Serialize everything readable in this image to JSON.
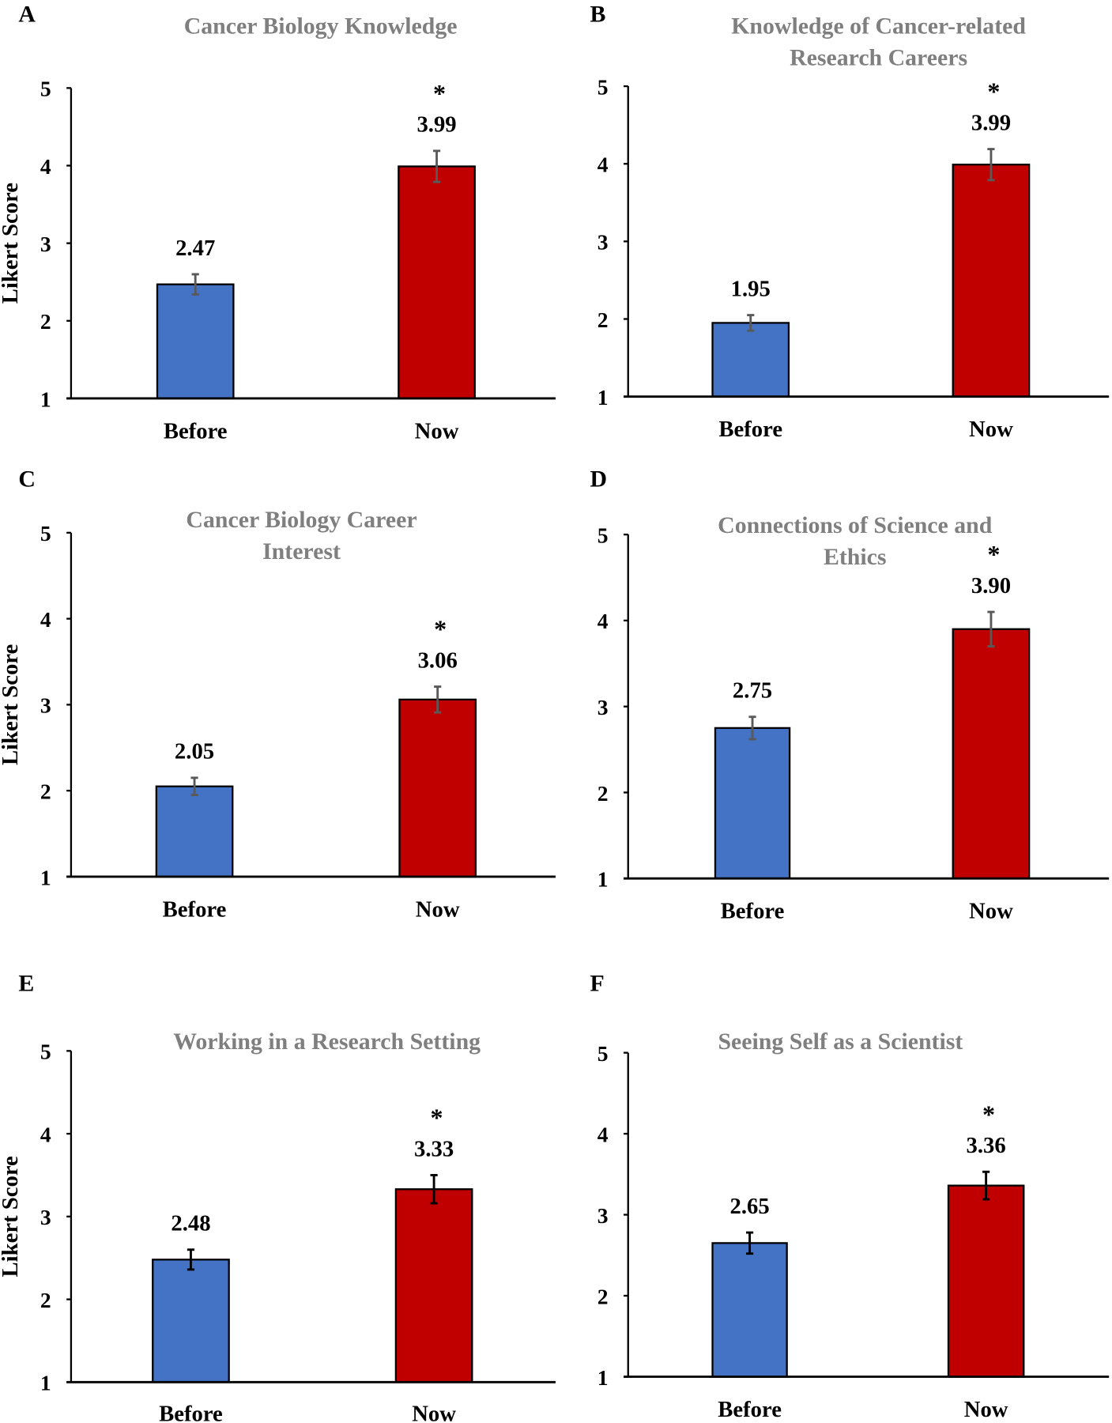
{
  "colors": {
    "before": "#4472c4",
    "now": "#c00000",
    "title": "#7f7f7f"
  },
  "chart_data": [
    {
      "type": "bar",
      "panel": "A",
      "title": [
        "Cancer Biology Knowledge"
      ],
      "ylabel": "Likert Score",
      "ylim": [
        1,
        5
      ],
      "yticks": [
        "1",
        "2",
        "3",
        "4",
        "5"
      ],
      "categories": [
        "Before",
        "Now"
      ],
      "values": [
        2.47,
        3.99
      ],
      "labels": [
        "2.47",
        "3.99"
      ],
      "errors": [
        0.13,
        0.2
      ],
      "significant": [
        false,
        true
      ],
      "sig_marker": "*",
      "error_color": "#595959"
    },
    {
      "type": "bar",
      "panel": "B",
      "title": [
        "Knowledge of Cancer-related",
        "Research Careers"
      ],
      "ylabel": "",
      "ylim": [
        1,
        5
      ],
      "yticks": [
        "1",
        "2",
        "3",
        "4",
        "5"
      ],
      "categories": [
        "Before",
        "Now"
      ],
      "values": [
        1.95,
        3.99
      ],
      "labels": [
        "1.95",
        "3.99"
      ],
      "errors": [
        0.1,
        0.2
      ],
      "significant": [
        false,
        true
      ],
      "sig_marker": "*",
      "error_color": "#595959"
    },
    {
      "type": "bar",
      "panel": "C",
      "title": [
        "Cancer Biology Career",
        "Interest"
      ],
      "ylabel": "Likert Score",
      "ylim": [
        1,
        5
      ],
      "yticks": [
        "1",
        "2",
        "3",
        "4",
        "5"
      ],
      "categories": [
        "Before",
        "Now"
      ],
      "values": [
        2.05,
        3.06
      ],
      "labels": [
        "2.05",
        "3.06"
      ],
      "errors": [
        0.1,
        0.15
      ],
      "significant": [
        false,
        true
      ],
      "sig_marker": "*",
      "error_color": "#595959"
    },
    {
      "type": "bar",
      "panel": "D",
      "title": [
        "Connections of Science and",
        "Ethics"
      ],
      "ylabel": "",
      "ylim": [
        1,
        5
      ],
      "yticks": [
        "1",
        "2",
        "3",
        "4",
        "5"
      ],
      "categories": [
        "Before",
        "Now"
      ],
      "values": [
        2.75,
        3.9
      ],
      "labels": [
        "2.75",
        "3.90"
      ],
      "errors": [
        0.13,
        0.2
      ],
      "significant": [
        false,
        true
      ],
      "sig_marker": "*",
      "error_color": "#595959"
    },
    {
      "type": "bar",
      "panel": "E",
      "title": [
        "Working in a Research Setting"
      ],
      "ylabel": "Likert Score",
      "ylim": [
        1,
        5
      ],
      "yticks": [
        "1",
        "2",
        "3",
        "4",
        "5"
      ],
      "categories": [
        "Before",
        "Now"
      ],
      "values": [
        2.48,
        3.33
      ],
      "labels": [
        "2.48",
        "3.33"
      ],
      "errors": [
        0.12,
        0.17
      ],
      "significant": [
        false,
        true
      ],
      "sig_marker": "*",
      "error_color": "#000000"
    },
    {
      "type": "bar",
      "panel": "F",
      "title": [
        "Seeing Self as a Scientist"
      ],
      "ylabel": "",
      "ylim": [
        1,
        5
      ],
      "yticks": [
        "1",
        "2",
        "3",
        "4",
        "5"
      ],
      "categories": [
        "Before",
        "Now"
      ],
      "values": [
        2.65,
        3.36
      ],
      "labels": [
        "2.65",
        "3.36"
      ],
      "errors": [
        0.13,
        0.17
      ],
      "significant": [
        false,
        true
      ],
      "sig_marker": "*",
      "error_color": "#000000"
    }
  ]
}
